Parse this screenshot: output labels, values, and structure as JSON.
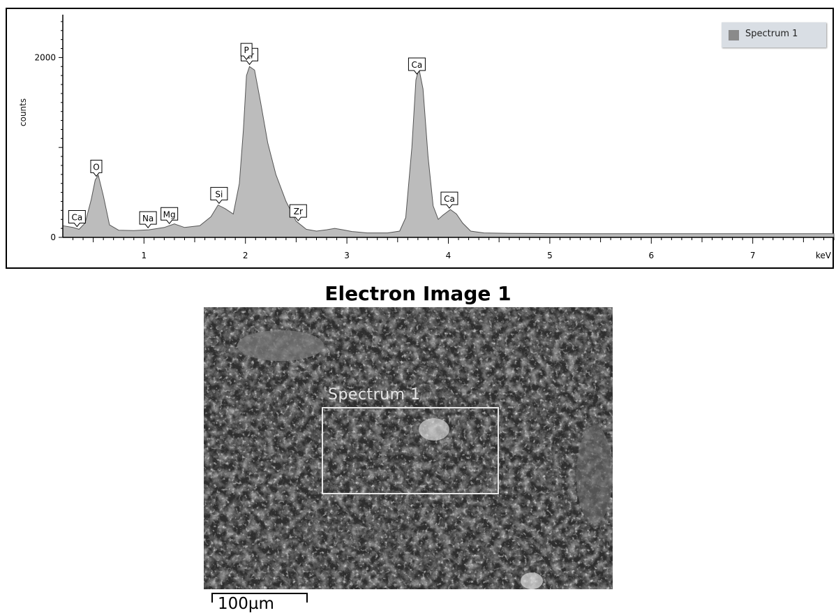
{
  "chart_data": {
    "type": "area",
    "ylabel": "counts",
    "xlabel": "keV",
    "xlim": [
      0.2,
      7.8
    ],
    "ylim": [
      0,
      2500
    ],
    "x_ticks": [
      1,
      2,
      3,
      4,
      5,
      6,
      7
    ],
    "y_ticks": [
      0,
      2000
    ],
    "series": [
      {
        "name": "Spectrum 1",
        "color": "#bcbcbc",
        "x": [
          0.2,
          0.3,
          0.36,
          0.42,
          0.48,
          0.52,
          0.55,
          0.6,
          0.66,
          0.75,
          0.9,
          1.05,
          1.2,
          1.3,
          1.4,
          1.55,
          1.66,
          1.73,
          1.8,
          1.88,
          1.94,
          1.98,
          2.01,
          2.04,
          2.09,
          2.15,
          2.22,
          2.3,
          2.4,
          2.5,
          2.6,
          2.7,
          2.8,
          2.88,
          2.96,
          3.05,
          3.2,
          3.4,
          3.52,
          3.58,
          3.64,
          3.68,
          3.71,
          3.75,
          3.8,
          3.85,
          3.9,
          3.95,
          4.02,
          4.08,
          4.14,
          4.22,
          4.35,
          4.6,
          5.0,
          5.5,
          6.0,
          6.5,
          7.0,
          7.4,
          7.8
        ],
        "values": [
          130,
          110,
          90,
          160,
          420,
          640,
          690,
          460,
          140,
          80,
          75,
          85,
          110,
          150,
          110,
          130,
          230,
          360,
          320,
          260,
          600,
          1200,
          1800,
          1900,
          1860,
          1500,
          1050,
          700,
          400,
          180,
          90,
          70,
          85,
          100,
          85,
          65,
          50,
          50,
          70,
          220,
          1000,
          1750,
          1880,
          1650,
          900,
          350,
          200,
          250,
          310,
          260,
          160,
          70,
          50,
          45,
          42,
          40,
          40,
          40,
          40,
          40,
          40
        ]
      }
    ],
    "peak_labels": [
      {
        "label": "Ca",
        "x": 0.34
      },
      {
        "label": "O",
        "x": 0.53
      },
      {
        "label": "Na",
        "x": 1.04
      },
      {
        "label": "Mg",
        "x": 1.25
      },
      {
        "label": "Si",
        "x": 1.74
      },
      {
        "label": "Zr",
        "x": 2.04
      },
      {
        "label": "P",
        "x": 2.01
      },
      {
        "label": "Zr",
        "x": 2.52
      },
      {
        "label": "Ca",
        "x": 3.69
      },
      {
        "label": "Ca",
        "x": 4.01
      }
    ]
  },
  "image": {
    "title": "Electron Image 1",
    "roi_label": "Spectrum 1",
    "scale_label": "100µm"
  }
}
